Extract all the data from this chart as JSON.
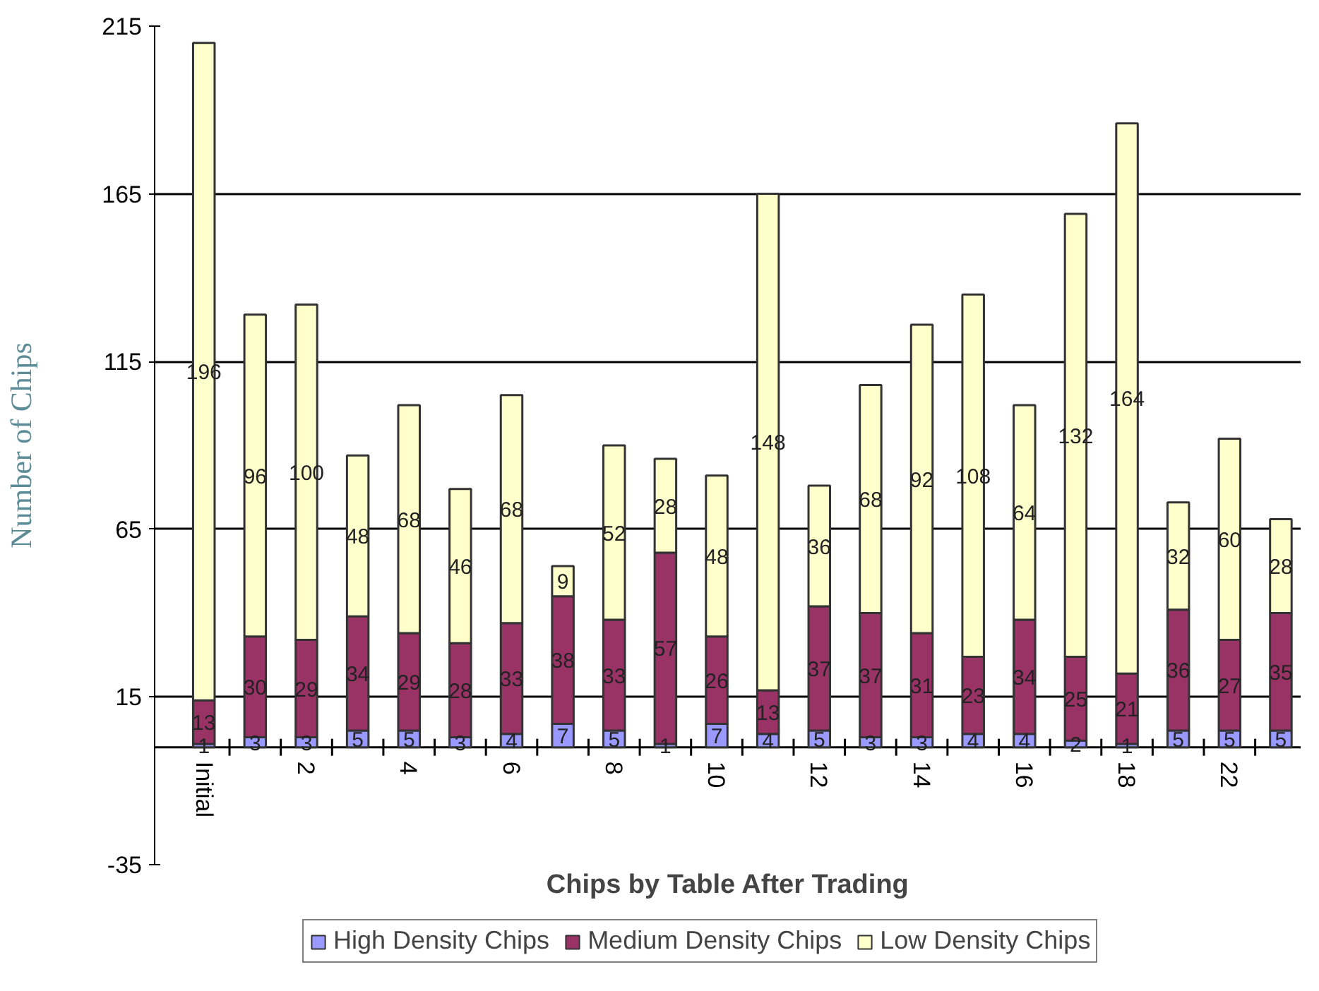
{
  "chart_data": {
    "type": "bar",
    "stacked": true,
    "xlabel": "Chips by Table After Trading",
    "ylabel": "Number of Chips",
    "categories": [
      "Initial",
      null,
      "2",
      null,
      "4",
      null,
      "6",
      null,
      "8",
      null,
      "10",
      null,
      "12",
      null,
      "14",
      null,
      "16",
      null,
      "18",
      null,
      "22",
      null
    ],
    "series": [
      {
        "name": "High Density Chips",
        "color": "#9999ff",
        "values": [
          1,
          3,
          3,
          5,
          5,
          3,
          4,
          7,
          5,
          1,
          7,
          4,
          5,
          3,
          3,
          4,
          4,
          2,
          1,
          5,
          5,
          5
        ]
      },
      {
        "name": "Medium Density Chips",
        "color": "#993366",
        "values": [
          13,
          30,
          29,
          34,
          29,
          28,
          33,
          38,
          33,
          57,
          26,
          13,
          37,
          37,
          31,
          23,
          34,
          25,
          21,
          36,
          27,
          35
        ]
      },
      {
        "name": "Low Density Chips",
        "color": "#ffffcc",
        "values": [
          196,
          96,
          100,
          48,
          68,
          46,
          68,
          9,
          52,
          28,
          48,
          148,
          36,
          68,
          92,
          108,
          64,
          132,
          164,
          32,
          60,
          28
        ]
      }
    ],
    "ylim": [
      -35,
      215
    ],
    "yticks": [
      -35,
      15,
      65,
      115,
      165,
      215
    ],
    "grid": "y",
    "legend": "bottom",
    "data_labels": true
  }
}
